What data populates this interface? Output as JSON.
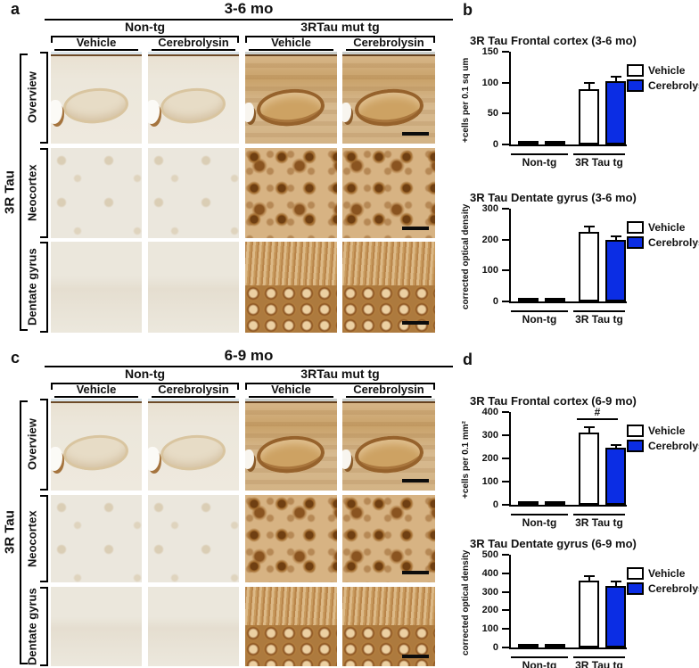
{
  "colors": {
    "cerebrolysin": "#0b2de4",
    "vehicle": "#ffffff",
    "axis": "#000000"
  },
  "panel_a": {
    "letter": "a",
    "title": "3-6 mo",
    "groups": [
      "Non-tg",
      "3RTau mut tg"
    ],
    "columns": [
      "Vehicle",
      "Cerebrolysin",
      "Vehicle",
      "Cerebrolysin"
    ],
    "side_label": "3R Tau",
    "rows": [
      "Overview",
      "Neocortex",
      "Dentate gyrus"
    ]
  },
  "panel_b": {
    "letter": "b"
  },
  "panel_c": {
    "letter": "c",
    "title": "6-9 mo",
    "groups": [
      "Non-tg",
      "3RTau mut tg"
    ],
    "columns": [
      "Vehicle",
      "Cerebrolysin",
      "Vehicle",
      "Cerebrolysin"
    ],
    "side_label": "3R Tau",
    "rows": [
      "Overview",
      "Neocortex",
      "Dentate gyrus"
    ]
  },
  "panel_d": {
    "letter": "d"
  },
  "chart_data": [
    {
      "type": "bar",
      "title": "3R Tau Frontal cortex (3-6 mo)",
      "ylabel": "+cells per 0.1 sq um",
      "categories": [
        "Non-tg",
        "3R Tau tg"
      ],
      "series": [
        {
          "name": "Vehicle",
          "values": [
            1.5,
            89
          ],
          "errors": [
            0,
            10
          ]
        },
        {
          "name": "Cerebrolysin",
          "values": [
            1.5,
            102
          ],
          "errors": [
            0,
            7
          ]
        }
      ],
      "ylim": [
        0,
        150
      ],
      "yticks": [
        0,
        50,
        100,
        150
      ],
      "legend_position": "right",
      "grid": false
    },
    {
      "type": "bar",
      "title": "3R Tau Dentate gyrus (3-6 mo)",
      "ylabel": "corrected optical density",
      "categories": [
        "Non-tg",
        "3R Tau tg"
      ],
      "series": [
        {
          "name": "Vehicle",
          "values": [
            12,
            226
          ],
          "errors": [
            0,
            16
          ]
        },
        {
          "name": "Cerebrolysin",
          "values": [
            10,
            198
          ],
          "errors": [
            0,
            12
          ]
        }
      ],
      "ylim": [
        0,
        300
      ],
      "yticks": [
        0,
        100,
        200,
        300
      ],
      "legend_position": "right",
      "grid": false
    },
    {
      "type": "bar",
      "title": "3R Tau Frontal cortex (6-9 mo)",
      "ylabel": "+cells per 0.1 mm²",
      "categories": [
        "Non-tg",
        "3R Tau tg"
      ],
      "series": [
        {
          "name": "Vehicle",
          "values": [
            3,
            310
          ],
          "errors": [
            0,
            25
          ]
        },
        {
          "name": "Cerebrolysin",
          "values": [
            3,
            245
          ],
          "errors": [
            0,
            13
          ]
        }
      ],
      "ylim": [
        0,
        400
      ],
      "yticks": [
        0,
        100,
        200,
        300,
        400
      ],
      "significance": {
        "label": "#",
        "between": "3R Tau tg Vehicle vs Cerebrolysin",
        "y": 375
      },
      "legend_position": "right",
      "grid": false
    },
    {
      "type": "bar",
      "title": "3R Tau Dentate gyrus (6-9 mo)",
      "ylabel": "corrected optical density",
      "categories": [
        "Non-tg",
        "3R Tau tg"
      ],
      "series": [
        {
          "name": "Vehicle",
          "values": [
            20,
            360
          ],
          "errors": [
            0,
            25
          ]
        },
        {
          "name": "Cerebrolysin",
          "values": [
            20,
            333
          ],
          "errors": [
            0,
            22
          ]
        }
      ],
      "ylim": [
        0,
        500
      ],
      "yticks": [
        0,
        100,
        200,
        300,
        400,
        500
      ],
      "legend_position": "right",
      "grid": false
    }
  ]
}
